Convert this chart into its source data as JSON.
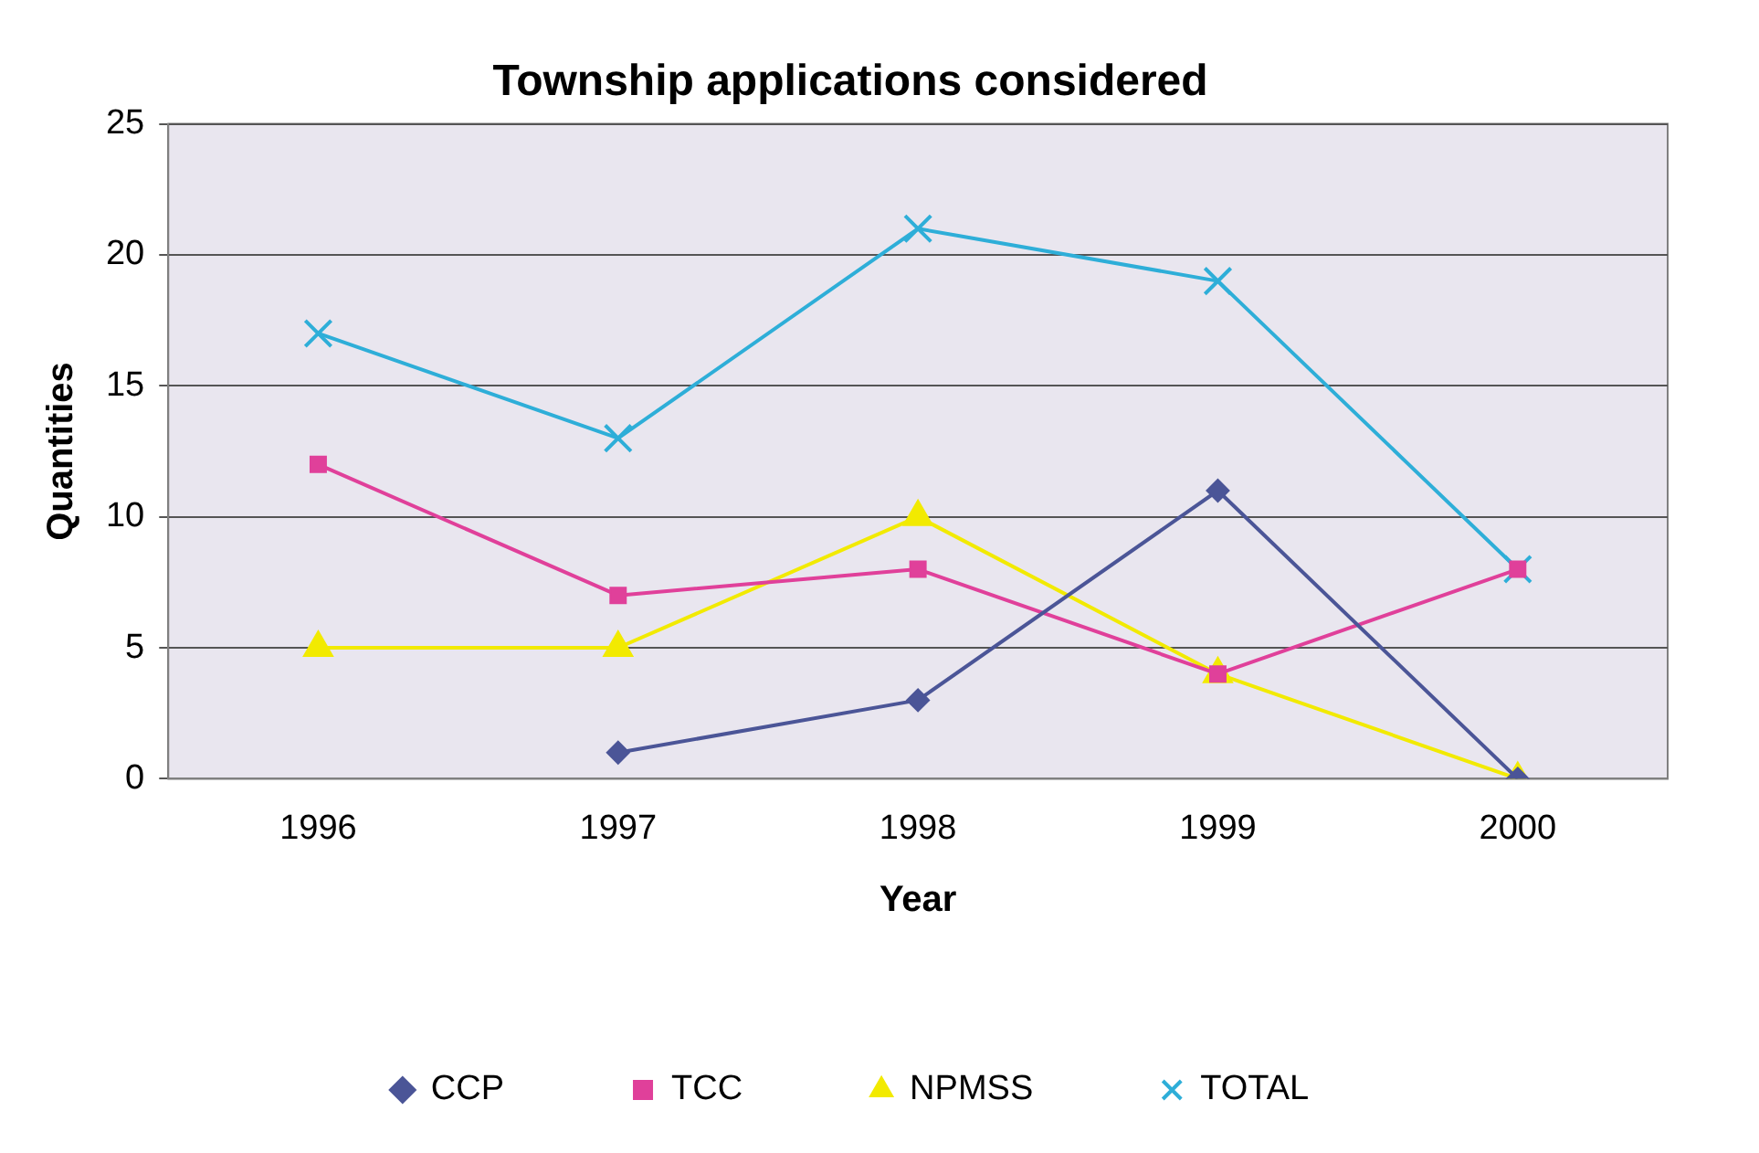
{
  "chart_data": {
    "type": "line",
    "title": "Township applications considered",
    "xlabel": "Year",
    "ylabel": "Quantities",
    "categories": [
      "1996",
      "1997",
      "1998",
      "1999",
      "2000"
    ],
    "series": [
      {
        "name": "CCP",
        "color": "#4b5597",
        "marker": "diamond",
        "values": [
          null,
          1,
          3,
          11,
          0
        ]
      },
      {
        "name": "TCC",
        "color": "#e0409a",
        "marker": "square",
        "values": [
          12,
          7,
          8,
          4,
          8
        ]
      },
      {
        "name": "NPMSS",
        "color": "#f2ea00",
        "marker": "triangle",
        "values": [
          5,
          5,
          10,
          4,
          0
        ]
      },
      {
        "name": "TOTAL",
        "color": "#2eaed8",
        "marker": "cross",
        "values": [
          17,
          13,
          21,
          19,
          8
        ]
      }
    ],
    "ylim": [
      0,
      25
    ],
    "yticks": [
      0,
      5,
      10,
      15,
      20,
      25
    ],
    "grid": "y",
    "legend": "bottom",
    "line_style": "solid"
  }
}
